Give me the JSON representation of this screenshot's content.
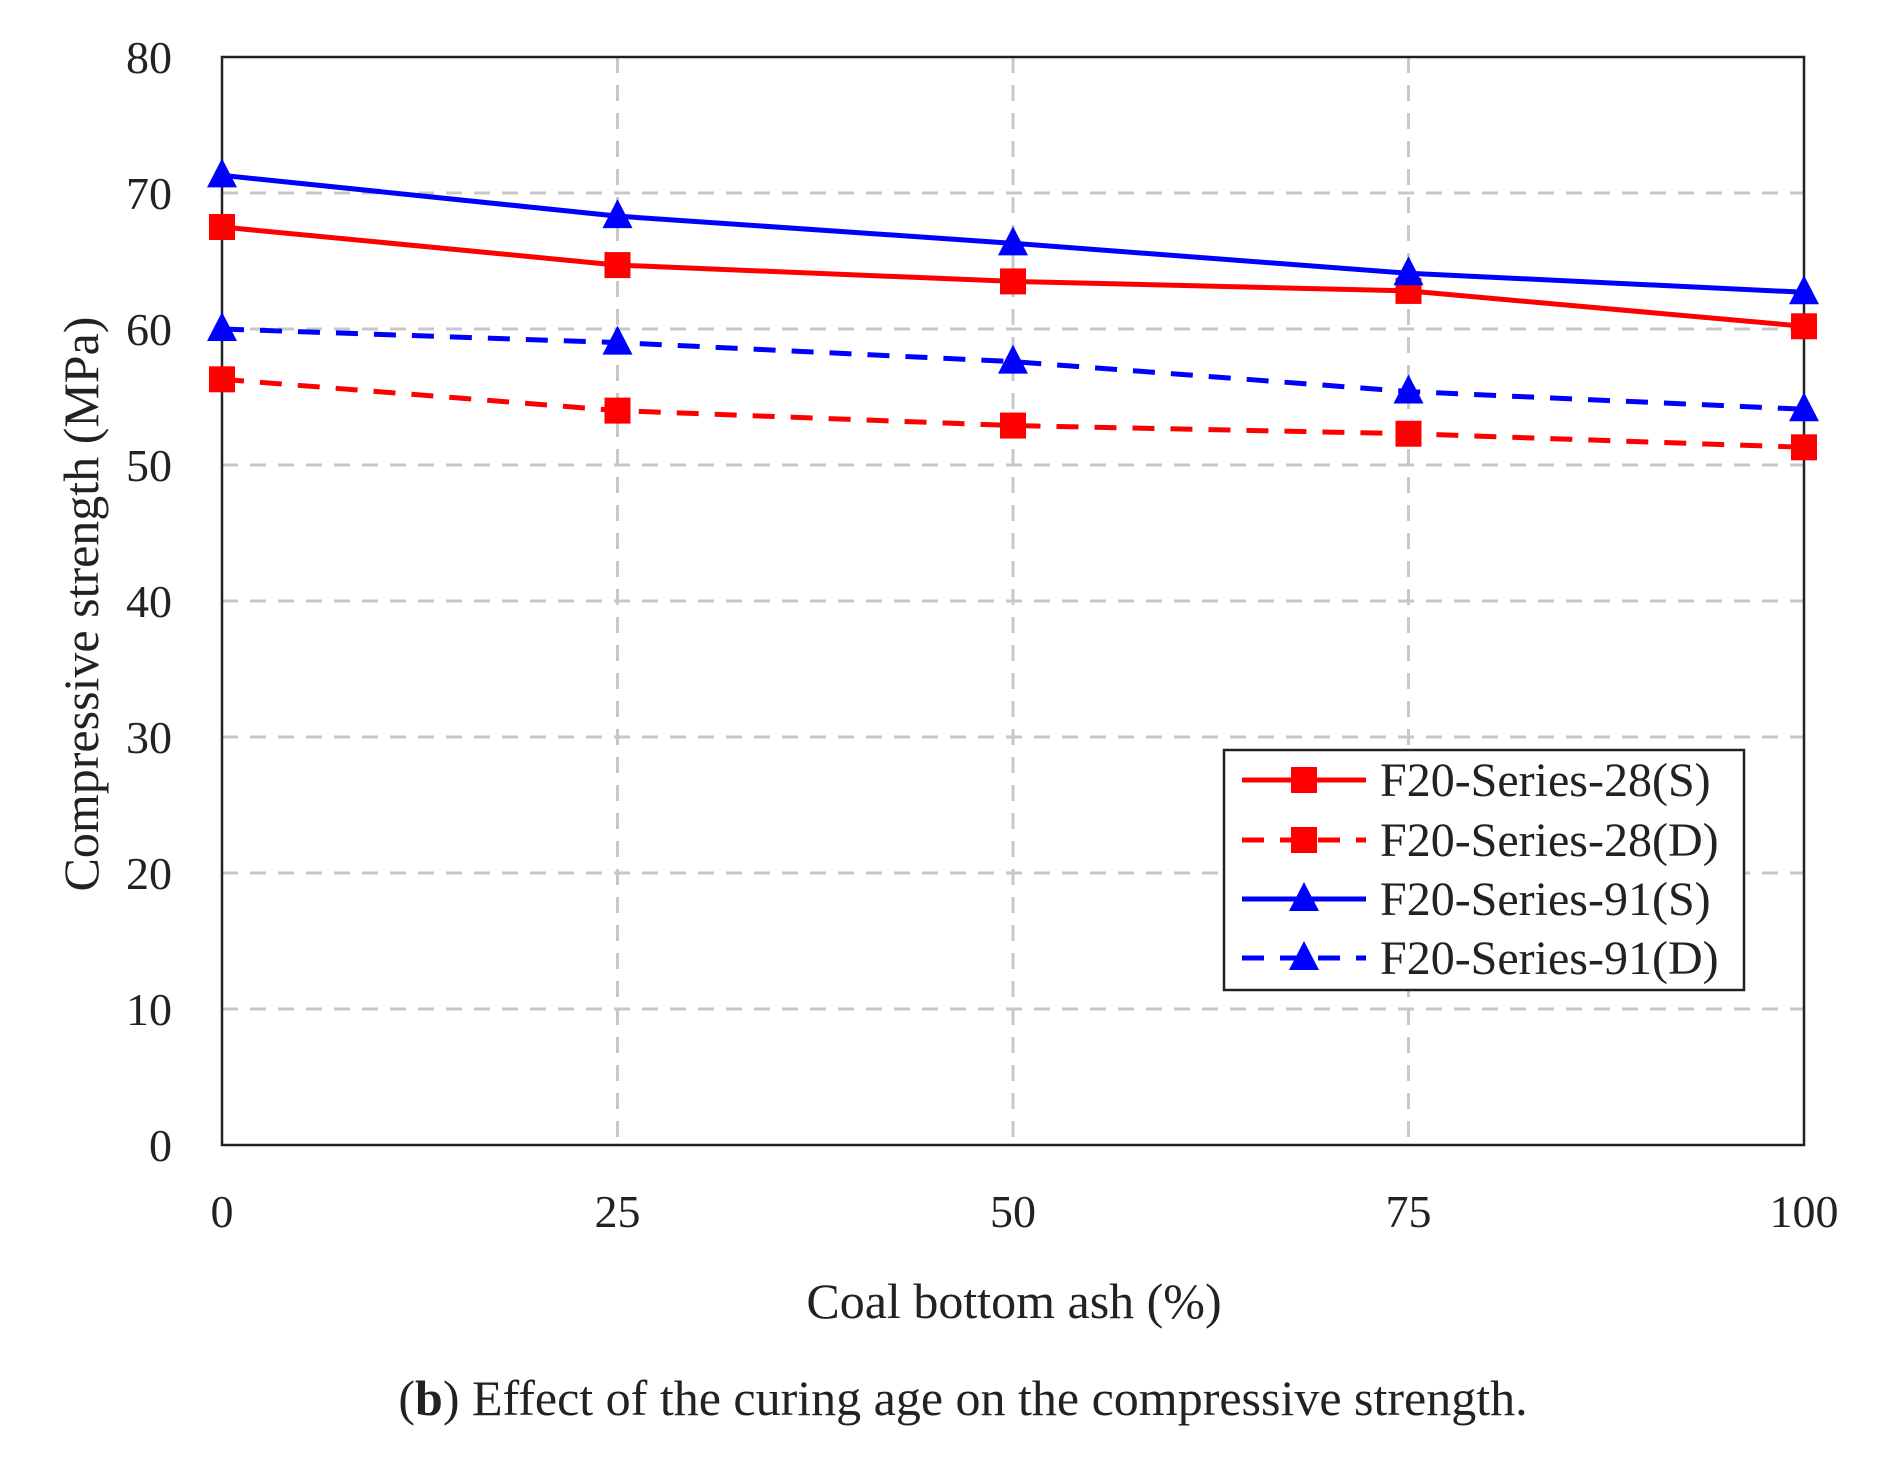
{
  "chart_data": {
    "type": "line",
    "xlabel": "Coal bottom ash (%)",
    "ylabel": "Compressive strength (MPa)",
    "xlim": [
      0,
      100
    ],
    "ylim": [
      0,
      80
    ],
    "x_ticks": [
      "0",
      "25",
      "50",
      "75",
      "100"
    ],
    "y_ticks": [
      "0",
      "10",
      "20",
      "30",
      "40",
      "50",
      "60",
      "70",
      "80"
    ],
    "x": [
      0,
      25,
      50,
      75,
      100
    ],
    "grid": true,
    "legend_position": "lower-right",
    "series": [
      {
        "name": "F20-Series-28(S)",
        "values": [
          67.5,
          64.7,
          63.5,
          62.8,
          60.2
        ],
        "color": "#ff0000",
        "line_style": "solid",
        "marker": "square"
      },
      {
        "name": "F20-Series-28(D)",
        "values": [
          56.3,
          54.0,
          52.9,
          52.3,
          51.3
        ],
        "color": "#ff0000",
        "line_style": "dashed",
        "marker": "square"
      },
      {
        "name": "F20-Series-91(S)",
        "values": [
          71.3,
          68.3,
          66.3,
          64.1,
          62.7
        ],
        "color": "#0000ff",
        "line_style": "solid",
        "marker": "triangle"
      },
      {
        "name": "F20-Series-91(D)",
        "values": [
          60.0,
          59.0,
          57.6,
          55.4,
          54.1
        ],
        "color": "#0000ff",
        "line_style": "dashed",
        "marker": "triangle"
      }
    ]
  },
  "caption": {
    "prefix": "(",
    "letter": "b",
    "text": ") Effect of the curing age on the compressive strength."
  }
}
